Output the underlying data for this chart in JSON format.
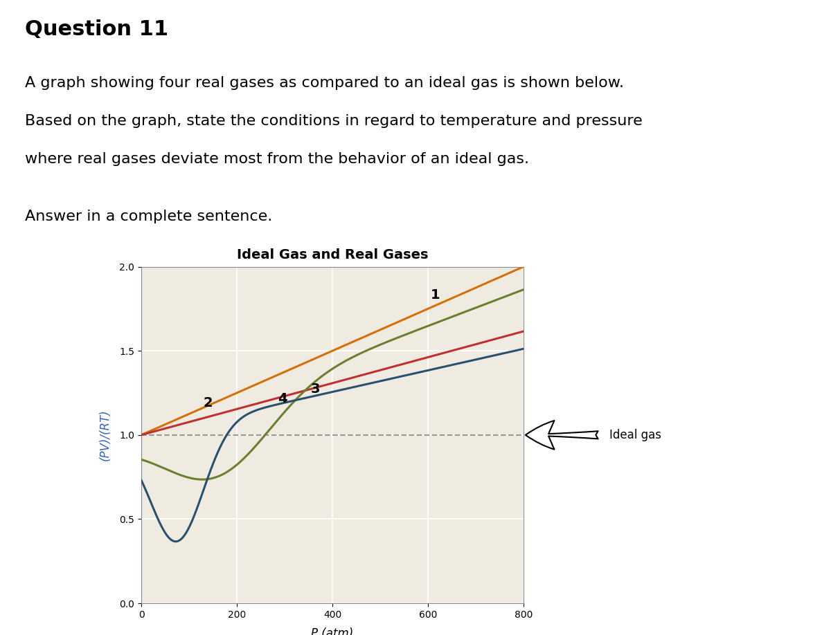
{
  "title": "Ideal Gas and Real Gases",
  "xlabel": "P (atm)",
  "ylabel": "(PV)/(RT)",
  "xlim": [
    0,
    800
  ],
  "ylim": [
    0,
    2.0
  ],
  "yticks": [
    0,
    0.5,
    1.0,
    1.5,
    2.0
  ],
  "xticks": [
    0,
    200,
    400,
    600,
    800
  ],
  "background_color": "#f0ebe0",
  "figure_background": "#ffffff",
  "ideal_gas_y": 1.0,
  "ideal_gas_color": "#999999",
  "gas1_color": "#d4700a",
  "gas2_color": "#c03030",
  "gas3_color": "#6a8030",
  "gas4_color": "#2a5070",
  "gas1_label": "1",
  "gas2_label": "2",
  "gas3_label": "3",
  "gas4_label": "4",
  "title_fontsize": 14,
  "label_fontsize": 12,
  "tick_fontsize": 10,
  "annotation_fontsize": 14,
  "ylabel_color": "#3366bb",
  "page_title": "Question 11",
  "page_line1": "A graph showing four real gases as compared to an ideal gas is shown below.",
  "page_line2": "Based on the graph, state the conditions in regard to temperature and pressure",
  "page_line3": "where real gases deviate most from the behavior of an ideal gas.",
  "page_line4": "Answer in a complete sentence."
}
